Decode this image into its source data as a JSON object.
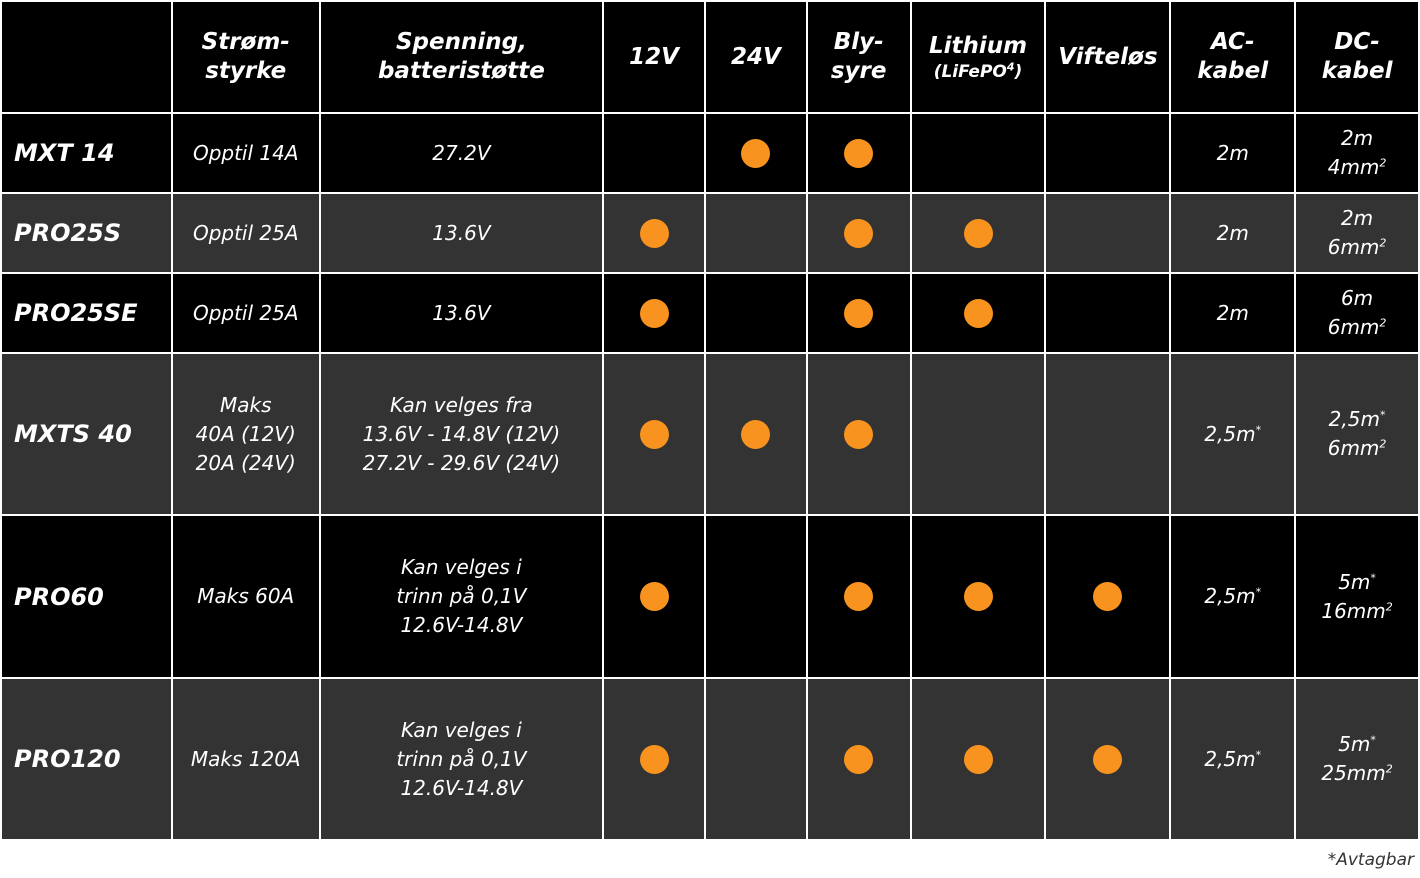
{
  "colors": {
    "background": "#000000",
    "alt_row": "#333333",
    "dot": "#f7931e",
    "text": "#ffffff"
  },
  "headers": [
    {
      "key": "model",
      "lines": [
        ""
      ]
    },
    {
      "key": "current",
      "lines": [
        "Strøm-",
        "styrke"
      ]
    },
    {
      "key": "voltage",
      "lines": [
        "Spenning,",
        "batteristøtte"
      ]
    },
    {
      "key": "v12",
      "lines": [
        "12V"
      ]
    },
    {
      "key": "v24",
      "lines": [
        "24V"
      ]
    },
    {
      "key": "lead",
      "lines": [
        "Bly-",
        "syre"
      ]
    },
    {
      "key": "lithium",
      "lines": [
        "Lithium"
      ],
      "sub": "(LiFePO",
      "sub_sup": "4",
      "sub_end": ")"
    },
    {
      "key": "fanless",
      "lines": [
        "Vifteløs"
      ]
    },
    {
      "key": "ac",
      "lines": [
        "AC-",
        "kabel"
      ]
    },
    {
      "key": "dc",
      "lines": [
        "DC-",
        "kabel"
      ]
    }
  ],
  "rows": [
    {
      "model": "MXT 14",
      "current": [
        "Opptil 14A"
      ],
      "voltage": [
        "27.2V"
      ],
      "v12": false,
      "v24": true,
      "lead": true,
      "lithium": false,
      "fanless": false,
      "ac": "2m",
      "ac_star": "",
      "dc_len": "2m",
      "dc_star": "",
      "dc_area": "4mm",
      "dc_sup": "2"
    },
    {
      "model": "PRO25S",
      "current": [
        "Opptil 25A"
      ],
      "voltage": [
        "13.6V"
      ],
      "v12": true,
      "v24": false,
      "lead": true,
      "lithium": true,
      "fanless": false,
      "ac": "2m",
      "ac_star": "",
      "dc_len": "2m",
      "dc_star": "",
      "dc_area": "6mm",
      "dc_sup": "2"
    },
    {
      "model": "PRO25SE",
      "current": [
        "Opptil 25A"
      ],
      "voltage": [
        "13.6V"
      ],
      "v12": true,
      "v24": false,
      "lead": true,
      "lithium": true,
      "fanless": false,
      "ac": "2m",
      "ac_star": "",
      "dc_len": "6m",
      "dc_star": "",
      "dc_area": "6mm",
      "dc_sup": "2"
    },
    {
      "model": "MXTS 40",
      "current": [
        "Maks",
        "40A (12V)",
        "20A (24V)"
      ],
      "voltage": [
        "Kan velges fra",
        "13.6V - 14.8V (12V)",
        "27.2V - 29.6V (24V)"
      ],
      "v12": true,
      "v24": true,
      "lead": true,
      "lithium": false,
      "fanless": false,
      "ac": "2,5m",
      "ac_star": "*",
      "dc_len": "2,5m",
      "dc_star": "*",
      "dc_area": "6mm",
      "dc_sup": "2"
    },
    {
      "model": "PRO60",
      "current": [
        "Maks 60A"
      ],
      "voltage": [
        "Kan velges i",
        "trinn på 0,1V",
        "12.6V-14.8V"
      ],
      "v12": true,
      "v24": false,
      "lead": true,
      "lithium": true,
      "fanless": true,
      "ac": "2,5m",
      "ac_star": "*",
      "dc_len": "5m",
      "dc_star": "*",
      "dc_area": "16mm",
      "dc_sup": "2"
    },
    {
      "model": "PRO120",
      "current": [
        "Maks 120A"
      ],
      "voltage": [
        "Kan velges i",
        "trinn på 0,1V",
        "12.6V-14.8V"
      ],
      "v12": true,
      "v24": false,
      "lead": true,
      "lithium": true,
      "fanless": true,
      "ac": "2,5m",
      "ac_star": "*",
      "dc_len": "5m",
      "dc_star": "*",
      "dc_area": "25mm",
      "dc_sup": "2"
    }
  ],
  "footnote": "*Avtagbar"
}
